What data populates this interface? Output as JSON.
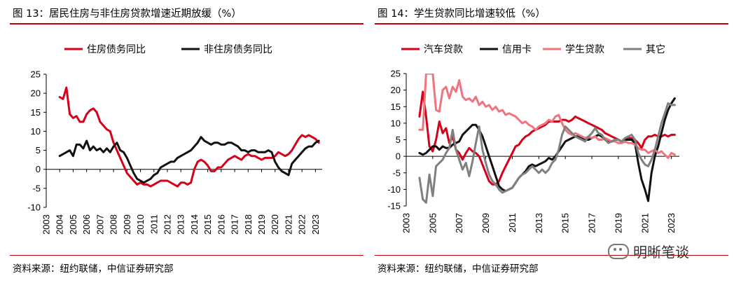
{
  "watermark": {
    "text": "明晰笔谈",
    "icon": "wechat-icon"
  },
  "panels": [
    {
      "title": "图 13：居民住房与非住房贷款增速近期放缓（%）",
      "source": "资料来源：纽约联储，中信证券研究部"
    },
    {
      "title": "图 14：学生贷款同比增速较低（%）",
      "source": "资料来源：纽约联储，中信证券研究部"
    }
  ],
  "chart_data": [
    {
      "type": "line",
      "title": "居民住房与非住房贷款增速近期放缓（%）",
      "xlabel": "",
      "ylabel": "",
      "ylim": [
        -10,
        25
      ],
      "yticks": [
        25,
        20,
        15,
        10,
        5,
        0,
        -5,
        -10
      ],
      "xlim": [
        2003,
        2023.5
      ],
      "xticks": [
        "2003",
        "2004",
        "2005",
        "2006",
        "2007",
        "2008",
        "2009",
        "2010",
        "2011",
        "2012",
        "2013",
        "2014",
        "2015",
        "2016",
        "2017",
        "2018",
        "2019",
        "2020",
        "2021",
        "2022",
        "2023"
      ],
      "legend_position": "top",
      "series": [
        {
          "name": "住房债务同比",
          "color": "#d7001a",
          "x": [
            2004.0,
            2004.25,
            2004.5,
            2004.75,
            2005.0,
            2005.25,
            2005.5,
            2005.75,
            2006.0,
            2006.25,
            2006.5,
            2006.75,
            2007.0,
            2007.25,
            2007.5,
            2007.75,
            2008.0,
            2008.25,
            2008.5,
            2008.75,
            2009.0,
            2009.25,
            2009.5,
            2009.75,
            2010.0,
            2010.25,
            2010.5,
            2010.75,
            2011.0,
            2011.25,
            2011.5,
            2011.75,
            2012.0,
            2012.25,
            2012.5,
            2012.75,
            2013.0,
            2013.25,
            2013.5,
            2013.75,
            2014.0,
            2014.25,
            2014.5,
            2014.75,
            2015.0,
            2015.25,
            2015.5,
            2015.75,
            2016.0,
            2016.25,
            2016.5,
            2016.75,
            2017.0,
            2017.25,
            2017.5,
            2017.75,
            2018.0,
            2018.25,
            2018.5,
            2018.75,
            2019.0,
            2019.25,
            2019.5,
            2019.75,
            2020.0,
            2020.25,
            2020.5,
            2020.75,
            2021.0,
            2021.25,
            2021.5,
            2021.75,
            2022.0,
            2022.25,
            2022.5,
            2022.75,
            2023.0,
            2023.25
          ],
          "values": [
            19,
            18.5,
            21.5,
            14.5,
            13.5,
            14,
            12.5,
            12.5,
            14.5,
            15.5,
            16,
            15,
            12.5,
            11.5,
            10.5,
            10,
            7,
            5,
            3,
            1,
            -1,
            -2,
            -3,
            -4,
            -3.5,
            -4,
            -4,
            -4.5,
            -4,
            -3.5,
            -3,
            -3,
            -3,
            -3.5,
            -4,
            -4.5,
            -3.5,
            -3.5,
            -4,
            -3.5,
            0,
            2,
            2.5,
            2,
            1,
            -0.5,
            -0.5,
            0.5,
            0.5,
            1.5,
            2.5,
            3,
            3.5,
            3,
            2.5,
            3.5,
            4,
            3.5,
            3.5,
            3,
            2.5,
            3,
            3,
            3,
            3.5,
            4.5,
            4,
            3.5,
            4,
            5,
            6.5,
            8,
            9,
            8.5,
            9,
            8.5,
            8,
            7
          ]
        },
        {
          "name": "非住房债务同比",
          "color": "#111111",
          "x": [
            2004.0,
            2004.25,
            2004.5,
            2004.75,
            2005.0,
            2005.25,
            2005.5,
            2005.75,
            2006.0,
            2006.25,
            2006.5,
            2006.75,
            2007.0,
            2007.25,
            2007.5,
            2007.75,
            2008.0,
            2008.25,
            2008.5,
            2008.75,
            2009.0,
            2009.25,
            2009.5,
            2009.75,
            2010.0,
            2010.25,
            2010.5,
            2010.75,
            2011.0,
            2011.25,
            2011.5,
            2011.75,
            2012.0,
            2012.25,
            2012.5,
            2012.75,
            2013.0,
            2013.25,
            2013.5,
            2013.75,
            2014.0,
            2014.25,
            2014.5,
            2014.75,
            2015.0,
            2015.25,
            2015.5,
            2015.75,
            2016.0,
            2016.25,
            2016.5,
            2016.75,
            2017.0,
            2017.25,
            2017.5,
            2017.75,
            2018.0,
            2018.25,
            2018.5,
            2018.75,
            2019.0,
            2019.25,
            2019.5,
            2019.75,
            2020.0,
            2020.25,
            2020.5,
            2020.75,
            2021.0,
            2021.25,
            2021.5,
            2021.75,
            2022.0,
            2022.25,
            2022.5,
            2022.75,
            2023.0,
            2023.25
          ],
          "values": [
            3.5,
            4,
            4.5,
            5,
            3.5,
            6.5,
            6.5,
            5.5,
            7.5,
            5,
            6,
            5,
            5.5,
            4.5,
            5.5,
            4.5,
            6,
            7,
            5,
            4.5,
            3,
            1,
            -1,
            -2.5,
            -3,
            -3.5,
            -3,
            -2.5,
            -1.5,
            -1,
            0.5,
            1,
            1.5,
            2,
            2,
            3,
            3.5,
            4,
            4.5,
            5,
            6,
            7,
            8.5,
            7.5,
            7,
            6.5,
            7,
            7,
            6.5,
            6.5,
            7,
            7,
            6.5,
            6,
            5,
            5,
            4.5,
            5,
            5,
            4.5,
            4.5,
            4.5,
            5,
            4.5,
            2,
            0.5,
            -0.5,
            -1,
            -1.5,
            1.5,
            2.5,
            3.5,
            4.5,
            5.5,
            6,
            6,
            7,
            7.5
          ]
        }
      ]
    },
    {
      "type": "line",
      "title": "学生贷款同比增速较低（%）",
      "xlabel": "",
      "ylabel": "",
      "ylim": [
        -15,
        25
      ],
      "yticks": [
        25,
        20,
        15,
        10,
        5,
        0,
        -5,
        -10,
        -15
      ],
      "xlim": [
        2003,
        2023.6
      ],
      "xticks": [
        "2003",
        "2005",
        "2007",
        "2009",
        "2011",
        "2013",
        "2015",
        "2017",
        "2019",
        "2021",
        "2023"
      ],
      "legend_position": "top",
      "series": [
        {
          "name": "汽车贷款",
          "color": "#d7001a",
          "x": [
            2004.0,
            2004.25,
            2004.5,
            2004.75,
            2005.0,
            2005.25,
            2005.5,
            2005.75,
            2006.0,
            2006.25,
            2006.5,
            2006.75,
            2007.0,
            2007.25,
            2007.5,
            2007.75,
            2008.0,
            2008.25,
            2008.5,
            2008.75,
            2009.0,
            2009.25,
            2009.5,
            2009.75,
            2010.0,
            2010.25,
            2010.5,
            2010.75,
            2011.0,
            2011.25,
            2011.5,
            2011.75,
            2012.0,
            2012.25,
            2012.5,
            2012.75,
            2013.0,
            2013.25,
            2013.5,
            2013.75,
            2014.0,
            2014.25,
            2014.5,
            2014.75,
            2015.0,
            2015.25,
            2015.5,
            2015.75,
            2016.0,
            2016.25,
            2016.5,
            2016.75,
            2017.0,
            2017.25,
            2017.5,
            2017.75,
            2018.0,
            2018.25,
            2018.5,
            2018.75,
            2019.0,
            2019.25,
            2019.5,
            2019.75,
            2020.0,
            2020.25,
            2020.5,
            2020.75,
            2021.0,
            2021.25,
            2021.5,
            2021.75,
            2022.0,
            2022.25,
            2022.5,
            2022.75,
            2023.0,
            2023.25
          ],
          "values": [
            12,
            19.5,
            12,
            3,
            1.5,
            5,
            10.5,
            7,
            8.5,
            4,
            6,
            2,
            1,
            -1,
            1,
            2.5,
            1.5,
            1,
            0,
            -2.5,
            -5,
            -7.5,
            -8.5,
            -8.5,
            -7.5,
            -5,
            -3,
            -1,
            1,
            3,
            3.5,
            5,
            6,
            6.5,
            7.5,
            8,
            8.5,
            9,
            9.5,
            10.5,
            10.5,
            10.5,
            10.5,
            11,
            11,
            10.5,
            11,
            12,
            11.5,
            11,
            10.5,
            10,
            9.5,
            9,
            8.5,
            8,
            7,
            6.5,
            6,
            5.5,
            5,
            4.5,
            5,
            5.5,
            5.5,
            5,
            4,
            2.5,
            5,
            6,
            6,
            6.5,
            6,
            6,
            6.5,
            6,
            6.5,
            6.5
          ]
        },
        {
          "name": "信用卡",
          "color": "#111111",
          "x": [
            2004.0,
            2004.25,
            2004.5,
            2004.75,
            2005.0,
            2005.25,
            2005.5,
            2005.75,
            2006.0,
            2006.25,
            2006.5,
            2006.75,
            2007.0,
            2007.25,
            2007.5,
            2007.75,
            2008.0,
            2008.25,
            2008.5,
            2008.75,
            2009.0,
            2009.25,
            2009.5,
            2009.75,
            2010.0,
            2010.25,
            2010.5,
            2010.75,
            2011.0,
            2011.25,
            2011.5,
            2011.75,
            2012.0,
            2012.25,
            2012.5,
            2012.75,
            2013.0,
            2013.25,
            2013.5,
            2013.75,
            2014.0,
            2014.25,
            2014.5,
            2014.75,
            2015.0,
            2015.25,
            2015.5,
            2015.75,
            2016.0,
            2016.25,
            2016.5,
            2016.75,
            2017.0,
            2017.25,
            2017.5,
            2017.75,
            2018.0,
            2018.25,
            2018.5,
            2018.75,
            2019.0,
            2019.25,
            2019.5,
            2019.75,
            2020.0,
            2020.25,
            2020.5,
            2020.75,
            2021.0,
            2021.25,
            2021.5,
            2021.75,
            2022.0,
            2022.25,
            2022.5,
            2022.75,
            2023.0,
            2023.25
          ],
          "values": [
            1,
            0.5,
            1,
            2,
            3,
            3,
            2,
            3,
            2.5,
            2.5,
            3.5,
            4,
            4.5,
            6.5,
            7.5,
            8.5,
            9.5,
            9.5,
            8,
            6,
            3,
            0,
            -3,
            -6,
            -9,
            -10,
            -10.5,
            -10,
            -9.5,
            -8,
            -6.5,
            -5.5,
            -4.5,
            -3,
            -2.5,
            -3,
            -2.5,
            -2,
            -1.5,
            -0.5,
            -1,
            0,
            1.5,
            3,
            4.5,
            5,
            5.5,
            6,
            6,
            5.5,
            5,
            5,
            5.5,
            6,
            6.5,
            6,
            5,
            4.5,
            4.5,
            5,
            5,
            4.5,
            5,
            5,
            5,
            4,
            -2,
            -7,
            -10,
            -13.5,
            -5,
            0,
            3,
            7,
            11,
            14,
            16,
            17.5
          ]
        },
        {
          "name": "学生贷款",
          "color": "#f0747e",
          "x": [
            2004.0,
            2004.25,
            2004.5,
            2004.75,
            2005.0,
            2005.25,
            2005.5,
            2005.75,
            2006.0,
            2006.25,
            2006.5,
            2006.75,
            2007.0,
            2007.25,
            2007.5,
            2007.75,
            2008.0,
            2008.25,
            2008.5,
            2008.75,
            2009.0,
            2009.25,
            2009.5,
            2009.75,
            2010.0,
            2010.25,
            2010.5,
            2010.75,
            2011.0,
            2011.25,
            2011.5,
            2011.75,
            2012.0,
            2012.25,
            2012.5,
            2012.75,
            2013.0,
            2013.25,
            2013.5,
            2013.75,
            2014.0,
            2014.25,
            2014.5,
            2014.75,
            2015.0,
            2015.25,
            2015.5,
            2015.75,
            2016.0,
            2016.25,
            2016.5,
            2016.75,
            2017.0,
            2017.25,
            2017.5,
            2017.75,
            2018.0,
            2018.25,
            2018.5,
            2018.75,
            2019.0,
            2019.25,
            2019.5,
            2019.75,
            2020.0,
            2020.25,
            2020.5,
            2020.75,
            2021.0,
            2021.25,
            2021.5,
            2021.75,
            2022.0,
            2022.25,
            2022.5,
            2022.75,
            2023.0,
            2023.25
          ],
          "values": [
            8,
            8,
            25,
            25,
            25,
            14,
            13.5,
            20,
            21,
            17.5,
            21,
            19.5,
            23,
            18,
            17,
            17.5,
            16.5,
            18,
            15.5,
            16.5,
            15,
            15.5,
            14,
            15,
            13.5,
            14,
            12.5,
            13,
            12.5,
            12,
            11,
            10,
            10.5,
            9.5,
            9,
            8,
            9,
            9.5,
            10,
            11,
            10.5,
            12,
            12.5,
            10,
            8,
            7,
            6.5,
            7,
            6.5,
            6,
            5.5,
            6,
            5.5,
            6,
            5,
            5,
            5.5,
            5,
            4.5,
            4.5,
            4,
            4,
            4.5,
            4,
            4,
            3.5,
            2.5,
            2,
            2,
            1,
            1.5,
            2,
            1,
            1.5,
            0.5,
            -0.5,
            1,
            0.5
          ]
        },
        {
          "name": "其它",
          "color": "#808080",
          "x": [
            2004.0,
            2004.25,
            2004.5,
            2004.75,
            2005.0,
            2005.25,
            2005.5,
            2005.75,
            2006.0,
            2006.25,
            2006.5,
            2006.75,
            2007.0,
            2007.25,
            2007.5,
            2007.75,
            2008.0,
            2008.25,
            2008.5,
            2008.75,
            2009.0,
            2009.25,
            2009.5,
            2009.75,
            2010.0,
            2010.25,
            2010.5,
            2010.75,
            2011.0,
            2011.25,
            2011.5,
            2011.75,
            2012.0,
            2012.25,
            2012.5,
            2012.75,
            2013.0,
            2013.25,
            2013.5,
            2013.75,
            2014.0,
            2014.25,
            2014.5,
            2014.75,
            2015.0,
            2015.25,
            2015.5,
            2015.75,
            2016.0,
            2016.25,
            2016.5,
            2016.75,
            2017.0,
            2017.25,
            2017.5,
            2017.75,
            2018.0,
            2018.25,
            2018.5,
            2018.75,
            2019.0,
            2019.25,
            2019.5,
            2019.75,
            2020.0,
            2020.25,
            2020.5,
            2020.75,
            2021.0,
            2021.25,
            2021.5,
            2021.75,
            2022.0,
            2022.25,
            2022.5,
            2022.75,
            2023.0,
            2023.25
          ],
          "values": [
            -6.5,
            -13,
            -14,
            -5.5,
            -12,
            -3,
            -2,
            -1,
            1,
            2.5,
            8,
            2,
            -1,
            -4,
            -2,
            -6,
            -1.5,
            4,
            9,
            2,
            -2,
            -5.5,
            -7.5,
            -8.5,
            -10,
            -11,
            -10.5,
            -10,
            -9.5,
            -8,
            -6.5,
            -5.5,
            -5,
            -4,
            -3,
            -4,
            -5,
            -4,
            -5,
            -4,
            -2,
            -1,
            2,
            6.5,
            9,
            8,
            7,
            6,
            5.5,
            5,
            4.5,
            6,
            7,
            8.5,
            7,
            6.5,
            5,
            4,
            4.5,
            5,
            5,
            4.5,
            5.5,
            6,
            6.5,
            5,
            1,
            -1,
            -2.5,
            -3,
            -1,
            2,
            6,
            10,
            13,
            16,
            15.5,
            15.5
          ]
        }
      ]
    }
  ]
}
